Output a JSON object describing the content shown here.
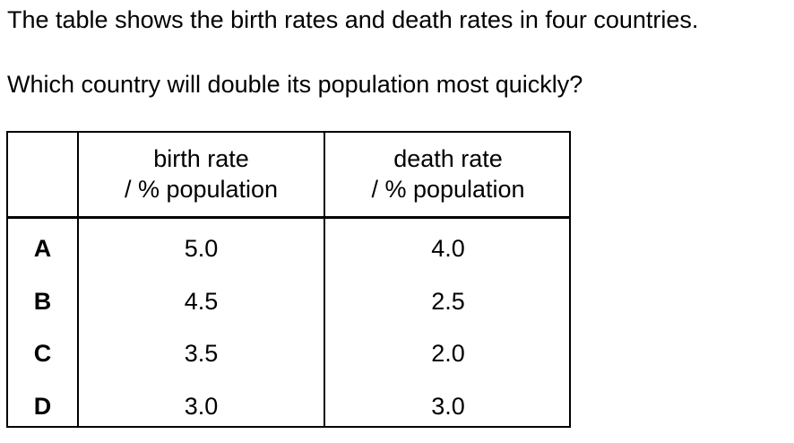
{
  "intro": "The table shows the birth rates and death rates in four countries.",
  "question": "Which country will double its population most quickly?",
  "table": {
    "headers": {
      "label": "",
      "birth_line1": "birth rate",
      "birth_line2": "/ % population",
      "death_line1": "death rate",
      "death_line2": "/ % population"
    },
    "rows": [
      {
        "label": "A",
        "birth": "5.0",
        "death": "4.0"
      },
      {
        "label": "B",
        "birth": "4.5",
        "death": "2.5"
      },
      {
        "label": "C",
        "birth": "3.5",
        "death": "2.0"
      },
      {
        "label": "D",
        "birth": "3.0",
        "death": "3.0"
      }
    ]
  }
}
